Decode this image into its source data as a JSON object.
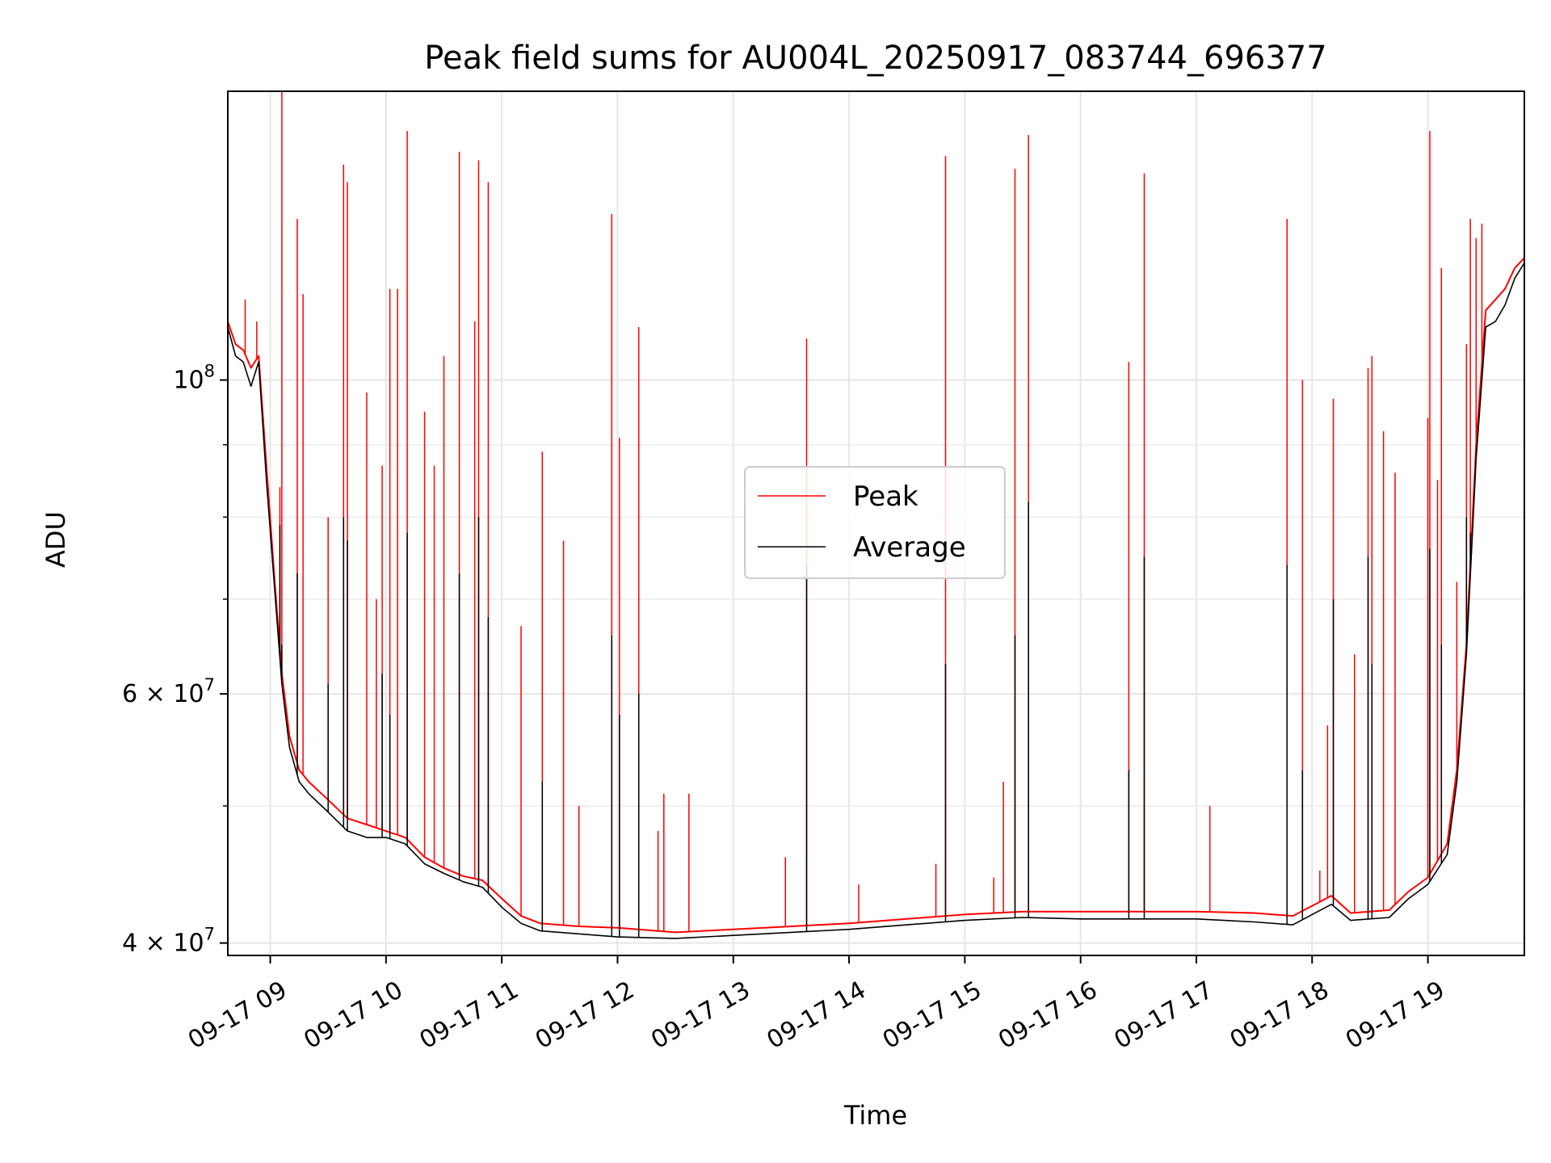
{
  "chart_data": {
    "type": "line",
    "title": "Peak field sums for AU004L_20250917_083744_696377",
    "xlabel": "Time",
    "ylabel": "ADU",
    "y_scale": "log",
    "ylim": [
      39200000,
      160000000
    ],
    "xlim": [
      "2025-09-17 08:38",
      "2025-09-17 19:50"
    ],
    "grid": true,
    "legend_position": "center",
    "x_ticks": [
      "2025-09-17 09:00",
      "2025-09-17 10:00",
      "2025-09-17 11:00",
      "2025-09-17 12:00",
      "2025-09-17 13:00",
      "2025-09-17 14:00",
      "2025-09-17 15:00",
      "2025-09-17 16:00",
      "2025-09-17 17:00",
      "2025-09-17 18:00",
      "2025-09-17 19:00"
    ],
    "x_tick_labels": [
      "09-17 09",
      "09-17 10",
      "09-17 11",
      "09-17 12",
      "09-17 13",
      "09-17 14",
      "09-17 15",
      "09-17 16",
      "09-17 17",
      "09-17 18",
      "09-17 19"
    ],
    "y_major_ticks": [
      {
        "value": 40000000,
        "label": "4 × 10",
        "exp": "7"
      },
      {
        "value": 60000000,
        "label": "6 × 10",
        "exp": "7"
      },
      {
        "value": 100000000,
        "label": "10",
        "exp": "8"
      }
    ],
    "y_minor_ticks": [
      50000000,
      70000000,
      80000000,
      90000000
    ],
    "series": [
      {
        "name": "Peak",
        "color": "#ff0000",
        "x": [
          "2025-09-17 08:38",
          "2025-09-17 08:42",
          "2025-09-17 08:46",
          "2025-09-17 08:50",
          "2025-09-17 08:54",
          "2025-09-17 08:58",
          "2025-09-17 09:02",
          "2025-09-17 09:06",
          "2025-09-17 09:10",
          "2025-09-17 09:15",
          "2025-09-17 09:20",
          "2025-09-17 09:30",
          "2025-09-17 09:40",
          "2025-09-17 09:50",
          "2025-09-17 10:00",
          "2025-09-17 10:10",
          "2025-09-17 10:20",
          "2025-09-17 10:30",
          "2025-09-17 10:40",
          "2025-09-17 10:50",
          "2025-09-17 11:00",
          "2025-09-17 11:10",
          "2025-09-17 11:20",
          "2025-09-17 11:40",
          "2025-09-17 12:00",
          "2025-09-17 12:30",
          "2025-09-17 13:00",
          "2025-09-17 13:30",
          "2025-09-17 14:00",
          "2025-09-17 14:30",
          "2025-09-17 15:00",
          "2025-09-17 15:30",
          "2025-09-17 16:00",
          "2025-09-17 16:30",
          "2025-09-17 17:00",
          "2025-09-17 17:30",
          "2025-09-17 17:50",
          "2025-09-17 18:10",
          "2025-09-17 18:20",
          "2025-09-17 18:40",
          "2025-09-17 18:50",
          "2025-09-17 19:00",
          "2025-09-17 19:10",
          "2025-09-17 19:15",
          "2025-09-17 19:20",
          "2025-09-17 19:25",
          "2025-09-17 19:30",
          "2025-09-17 19:35",
          "2025-09-17 19:40",
          "2025-09-17 19:45",
          "2025-09-17 19:50"
        ],
        "y": [
          110000000,
          106000000,
          105000000,
          102000000,
          104000000,
          87000000,
          73000000,
          62000000,
          56000000,
          53000000,
          52000000,
          50500000,
          49000000,
          48500000,
          48000000,
          47500000,
          46000000,
          45200000,
          44600000,
          44300000,
          43000000,
          41800000,
          41300000,
          41100000,
          41000000,
          40700000,
          40900000,
          41100000,
          41300000,
          41600000,
          41900000,
          42100000,
          42100000,
          42100000,
          42100000,
          42000000,
          41800000,
          43200000,
          42000000,
          42200000,
          43500000,
          44500000,
          47000000,
          53000000,
          65000000,
          90000000,
          112000000,
          114000000,
          116000000,
          120000000,
          122000000
        ],
        "spikes": [
          [
            "2025-09-17 08:38",
            118000000
          ],
          [
            "2025-09-17 08:47",
            114000000
          ],
          [
            "2025-09-17 08:53",
            110000000
          ],
          [
            "2025-09-17 09:05",
            84000000
          ],
          [
            "2025-09-17 09:06",
            160000000
          ],
          [
            "2025-09-17 09:14",
            130000000
          ],
          [
            "2025-09-17 09:17",
            115000000
          ],
          [
            "2025-09-17 09:30",
            80000000
          ],
          [
            "2025-09-17 09:38",
            142000000
          ],
          [
            "2025-09-17 09:40",
            138000000
          ],
          [
            "2025-09-17 09:50",
            98000000
          ],
          [
            "2025-09-17 09:55",
            70000000
          ],
          [
            "2025-09-17 09:58",
            87000000
          ],
          [
            "2025-09-17 10:02",
            116000000
          ],
          [
            "2025-09-17 10:06",
            116000000
          ],
          [
            "2025-09-17 10:11",
            150000000
          ],
          [
            "2025-09-17 10:20",
            95000000
          ],
          [
            "2025-09-17 10:25",
            87000000
          ],
          [
            "2025-09-17 10:30",
            104000000
          ],
          [
            "2025-09-17 10:38",
            145000000
          ],
          [
            "2025-09-17 10:46",
            110000000
          ],
          [
            "2025-09-17 10:48",
            143000000
          ],
          [
            "2025-09-17 10:53",
            138000000
          ],
          [
            "2025-09-17 11:10",
            67000000
          ],
          [
            "2025-09-17 11:21",
            89000000
          ],
          [
            "2025-09-17 11:32",
            77000000
          ],
          [
            "2025-09-17 11:40",
            50000000
          ],
          [
            "2025-09-17 11:57",
            131000000
          ],
          [
            "2025-09-17 12:01",
            91000000
          ],
          [
            "2025-09-17 12:11",
            109000000
          ],
          [
            "2025-09-17 12:21",
            48000000
          ],
          [
            "2025-09-17 12:24",
            51000000
          ],
          [
            "2025-09-17 12:37",
            51000000
          ],
          [
            "2025-09-17 13:27",
            46000000
          ],
          [
            "2025-09-17 13:38",
            107000000
          ],
          [
            "2025-09-17 14:05",
            44000000
          ],
          [
            "2025-09-17 14:45",
            45500000
          ],
          [
            "2025-09-17 14:50",
            144000000
          ],
          [
            "2025-09-17 15:15",
            44500000
          ],
          [
            "2025-09-17 15:20",
            52000000
          ],
          [
            "2025-09-17 15:26",
            141000000
          ],
          [
            "2025-09-17 15:33",
            149000000
          ],
          [
            "2025-09-17 16:25",
            103000000
          ],
          [
            "2025-09-17 16:33",
            140000000
          ],
          [
            "2025-09-17 17:07",
            50000000
          ],
          [
            "2025-09-17 17:47",
            130000000
          ],
          [
            "2025-09-17 17:55",
            100000000
          ],
          [
            "2025-09-17 18:04",
            45000000
          ],
          [
            "2025-09-17 18:08",
            57000000
          ],
          [
            "2025-09-17 18:11",
            97000000
          ],
          [
            "2025-09-17 18:22",
            64000000
          ],
          [
            "2025-09-17 18:29",
            102000000
          ],
          [
            "2025-09-17 18:31",
            104000000
          ],
          [
            "2025-09-17 18:37",
            92000000
          ],
          [
            "2025-09-17 18:43",
            86000000
          ],
          [
            "2025-09-17 19:00",
            94000000
          ],
          [
            "2025-09-17 19:01",
            150000000
          ],
          [
            "2025-09-17 19:05",
            85000000
          ],
          [
            "2025-09-17 19:07",
            120000000
          ],
          [
            "2025-09-17 19:15",
            72000000
          ],
          [
            "2025-09-17 19:20",
            106000000
          ],
          [
            "2025-09-17 19:22",
            130000000
          ],
          [
            "2025-09-17 19:25",
            126000000
          ],
          [
            "2025-09-17 19:28",
            129000000
          ]
        ]
      },
      {
        "name": "Average",
        "color": "#000000",
        "x": [
          "2025-09-17 08:38",
          "2025-09-17 08:42",
          "2025-09-17 08:46",
          "2025-09-17 08:50",
          "2025-09-17 08:54",
          "2025-09-17 08:58",
          "2025-09-17 09:02",
          "2025-09-17 09:06",
          "2025-09-17 09:10",
          "2025-09-17 09:15",
          "2025-09-17 09:20",
          "2025-09-17 09:30",
          "2025-09-17 09:40",
          "2025-09-17 09:50",
          "2025-09-17 10:00",
          "2025-09-17 10:10",
          "2025-09-17 10:20",
          "2025-09-17 10:30",
          "2025-09-17 10:40",
          "2025-09-17 10:50",
          "2025-09-17 11:00",
          "2025-09-17 11:10",
          "2025-09-17 11:20",
          "2025-09-17 11:40",
          "2025-09-17 12:00",
          "2025-09-17 12:30",
          "2025-09-17 13:00",
          "2025-09-17 13:30",
          "2025-09-17 14:00",
          "2025-09-17 14:30",
          "2025-09-17 15:00",
          "2025-09-17 15:30",
          "2025-09-17 16:00",
          "2025-09-17 16:30",
          "2025-09-17 17:00",
          "2025-09-17 17:30",
          "2025-09-17 17:50",
          "2025-09-17 18:10",
          "2025-09-17 18:20",
          "2025-09-17 18:40",
          "2025-09-17 18:50",
          "2025-09-17 19:00",
          "2025-09-17 19:10",
          "2025-09-17 19:15",
          "2025-09-17 19:20",
          "2025-09-17 19:25",
          "2025-09-17 19:30",
          "2025-09-17 19:35",
          "2025-09-17 19:40",
          "2025-09-17 19:45",
          "2025-09-17 19:50"
        ],
        "y": [
          109000000,
          104000000,
          103000000,
          99000000,
          103000000,
          85000000,
          72000000,
          61000000,
          55000000,
          52000000,
          51000000,
          49500000,
          48000000,
          47500000,
          47500000,
          47000000,
          45500000,
          44800000,
          44200000,
          43800000,
          42400000,
          41300000,
          40800000,
          40600000,
          40400000,
          40300000,
          40500000,
          40700000,
          40900000,
          41200000,
          41500000,
          41700000,
          41600000,
          41600000,
          41600000,
          41400000,
          41200000,
          42600000,
          41500000,
          41700000,
          43000000,
          44000000,
          46200000,
          52000000,
          64000000,
          88000000,
          109000000,
          110000000,
          113000000,
          118000000,
          121000000
        ],
        "spikes": [
          [
            "2025-09-17 09:05",
            79000000
          ],
          [
            "2025-09-17 09:06",
            65000000
          ],
          [
            "2025-09-17 09:14",
            73000000
          ],
          [
            "2025-09-17 09:30",
            61000000
          ],
          [
            "2025-09-17 09:38",
            80000000
          ],
          [
            "2025-09-17 09:40",
            77000000
          ],
          [
            "2025-09-17 09:58",
            62000000
          ],
          [
            "2025-09-17 10:02",
            58000000
          ],
          [
            "2025-09-17 10:11",
            78000000
          ],
          [
            "2025-09-17 10:38",
            73000000
          ],
          [
            "2025-09-17 10:48",
            80000000
          ],
          [
            "2025-09-17 10:53",
            68000000
          ],
          [
            "2025-09-17 11:21",
            52000000
          ],
          [
            "2025-09-17 11:57",
            66000000
          ],
          [
            "2025-09-17 12:01",
            58000000
          ],
          [
            "2025-09-17 12:11",
            60000000
          ],
          [
            "2025-09-17 13:38",
            74000000
          ],
          [
            "2025-09-17 14:50",
            63000000
          ],
          [
            "2025-09-17 15:26",
            66000000
          ],
          [
            "2025-09-17 15:33",
            82000000
          ],
          [
            "2025-09-17 16:25",
            53000000
          ],
          [
            "2025-09-17 16:33",
            75000000
          ],
          [
            "2025-09-17 17:47",
            74000000
          ],
          [
            "2025-09-17 17:55",
            53000000
          ],
          [
            "2025-09-17 18:11",
            70000000
          ],
          [
            "2025-09-17 18:29",
            75000000
          ],
          [
            "2025-09-17 18:31",
            63000000
          ],
          [
            "2025-09-17 19:01",
            76000000
          ],
          [
            "2025-09-17 19:07",
            65000000
          ],
          [
            "2025-09-17 19:20",
            80000000
          ],
          [
            "2025-09-17 19:22",
            78000000
          ]
        ]
      }
    ]
  }
}
